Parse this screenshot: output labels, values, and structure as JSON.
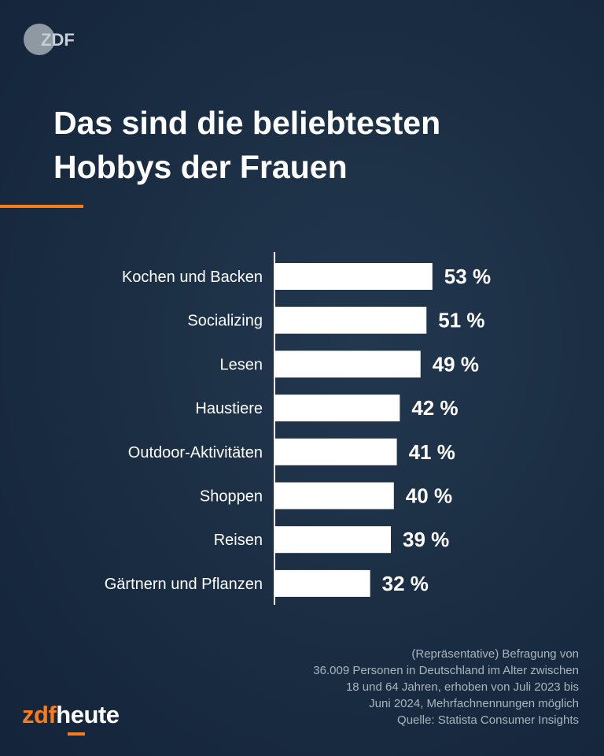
{
  "logo": {
    "text": "ZDF",
    "icon": "zdf-logo-icon"
  },
  "title": {
    "line1": "Das sind die beliebtesten",
    "line2": "Hobbys der Frauen"
  },
  "colors": {
    "accent": "#fa7d19",
    "bar": "#ffffff",
    "text": "#ffffff",
    "footnote": "#aab4bf"
  },
  "chart_data": {
    "type": "bar",
    "orientation": "horizontal",
    "title": "Das sind die beliebtesten Hobbys der Frauen",
    "categories": [
      "Kochen und Backen",
      "Socializing",
      "Lesen",
      "Haustiere",
      "Outdoor-Aktivitäten",
      "Shoppen",
      "Reisen",
      "Gärtnern und Pflanzen"
    ],
    "values": [
      53,
      51,
      49,
      42,
      41,
      40,
      39,
      32
    ],
    "value_labels": [
      "53 %",
      "51 %",
      "49 %",
      "42 %",
      "41 %",
      "40 %",
      "39 %",
      "32 %"
    ],
    "unit": "%",
    "xlim": [
      0,
      100
    ],
    "grid": false,
    "xlabel": "",
    "ylabel": ""
  },
  "footnote": {
    "lines": [
      "(Repräsentative) Befragung von",
      "36.009 Personen in Deutschland im Alter zwischen",
      "18 und 64 Jahren, erhoben von Juli 2023 bis",
      "Juni 2024, Mehrfachnennungen möglich",
      "Quelle: Statista Consumer Insights"
    ]
  },
  "brand": {
    "part1": "zdf",
    "part2": "heute"
  }
}
